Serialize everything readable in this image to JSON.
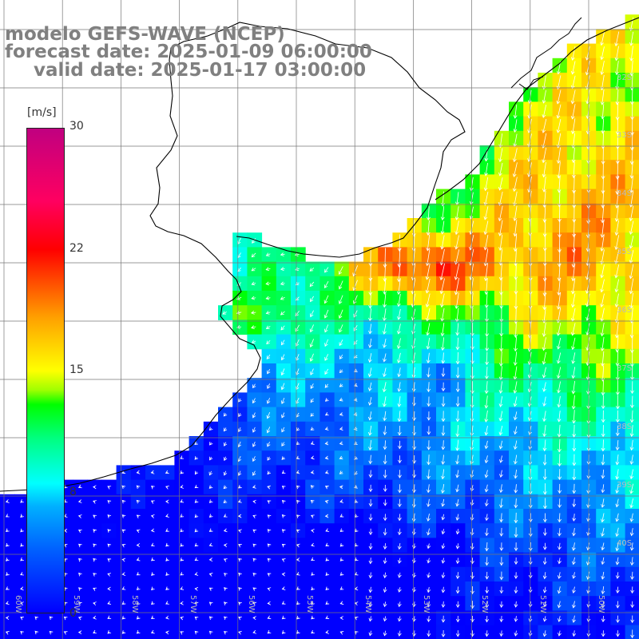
{
  "header": {
    "model": "modelo GEFS-WAVE (NCEP)",
    "forecast": "forecast date: 2025-01-09 06:00:00",
    "valid": "valid date: 2025-01-17 03:00:00"
  },
  "colorbar": {
    "unit": "[m/s]",
    "ticks": [
      {
        "label": "30",
        "value": 30
      },
      {
        "label": "22",
        "value": 22
      },
      {
        "label": "15",
        "value": 15
      },
      {
        "label": "8",
        "value": 8
      },
      {
        "label": "0",
        "value": 0
      }
    ],
    "range": [
      0,
      30
    ],
    "colors": [
      "#0000ff",
      "#00ffff",
      "#00ff00",
      "#ffff00",
      "#ff0000",
      "#c00080"
    ]
  },
  "grid": {
    "lat_labels": [
      "32S",
      "33S",
      "34S",
      "35S",
      "36S",
      "37S",
      "38S",
      "39S",
      "40S"
    ],
    "lon_labels": [
      "60W",
      "59W",
      "58W",
      "57W",
      "56W",
      "55W",
      "54W",
      "53W",
      "52W",
      "51W",
      "50W"
    ]
  },
  "field": {
    "description_values_m_s": "wind speed field with arrow vectors",
    "colors": {
      "land": "#ffffff",
      "coast": "#000000",
      "gridline": "#777777",
      "arrow": "#ffffff"
    }
  }
}
